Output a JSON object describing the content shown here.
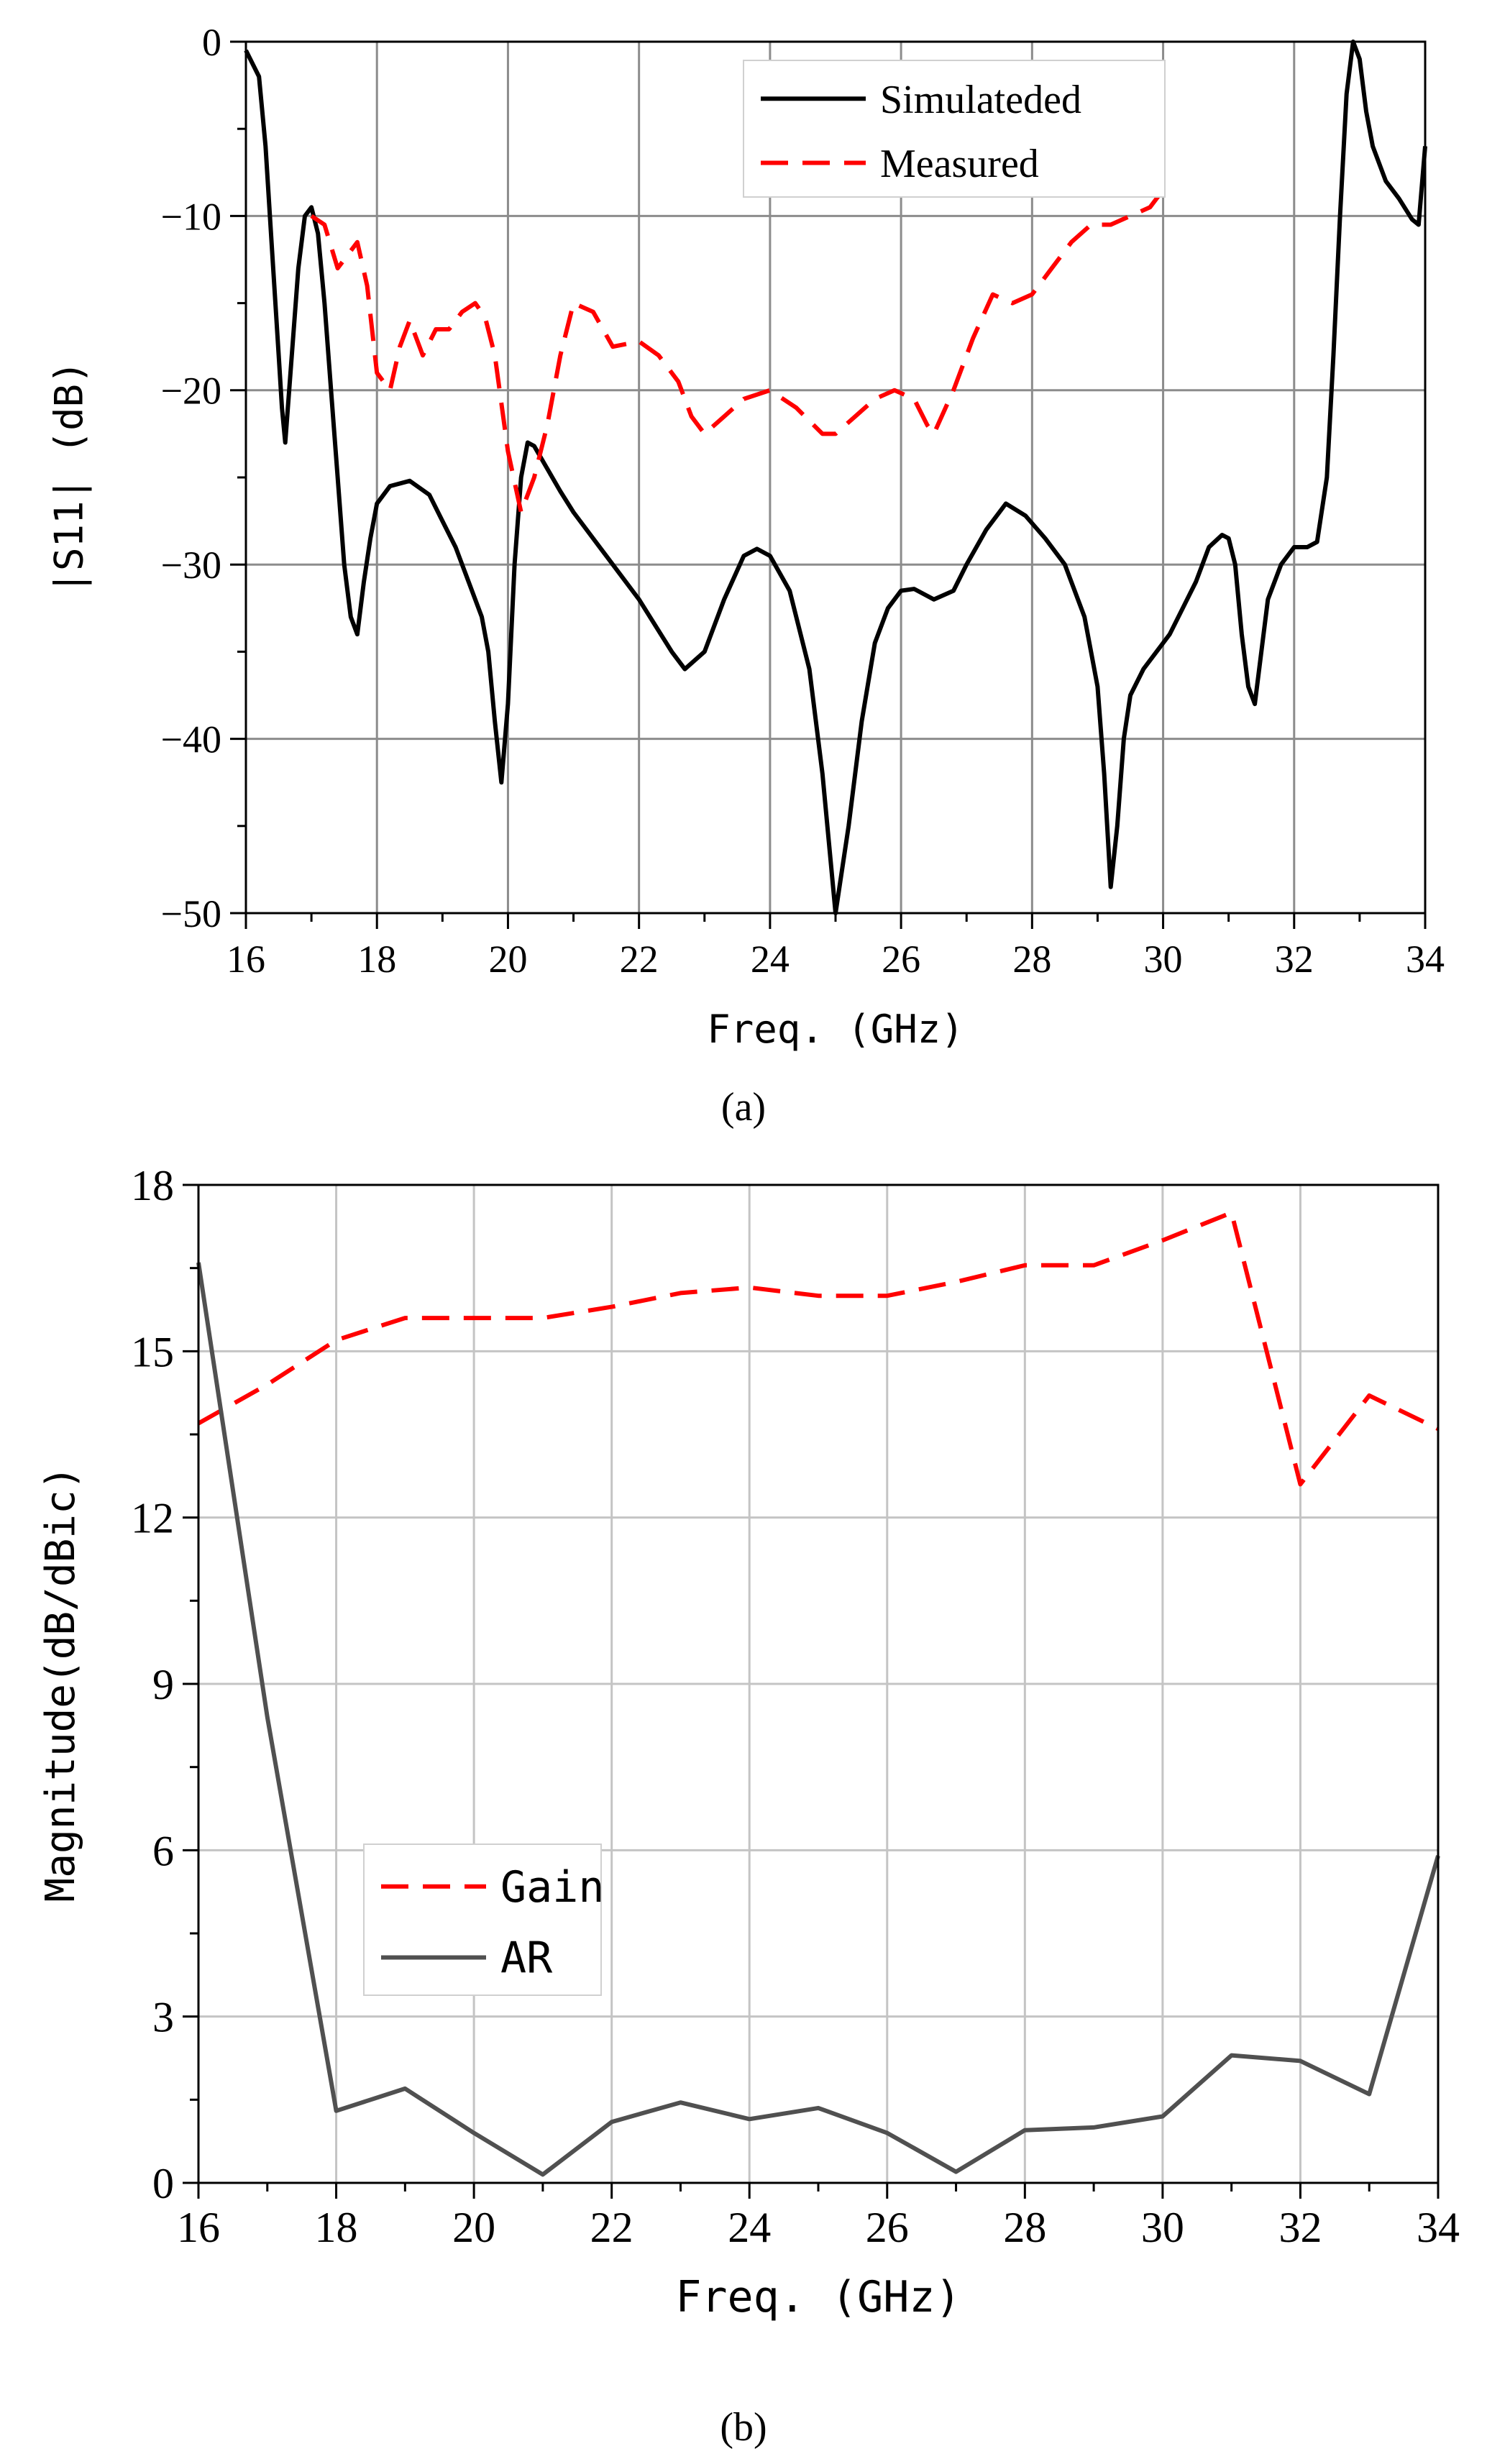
{
  "figure": {
    "panel_a_caption": "(a)",
    "panel_b_caption": "(b)"
  },
  "chart_data": [
    {
      "type": "line",
      "id": "panel-a",
      "title": "",
      "xlabel": "Freq. (GHz)",
      "ylabel": "|S11| (dB)",
      "xlim": [
        16,
        34
      ],
      "ylim": [
        -50,
        0
      ],
      "xticks": [
        16,
        18,
        20,
        22,
        24,
        26,
        28,
        30,
        32,
        34
      ],
      "yticks": [
        0,
        -10,
        -20,
        -30,
        -40,
        -50
      ],
      "ytick_labels": [
        "0",
        "−10",
        "−20",
        "−30",
        "−40",
        "−50"
      ],
      "grid": true,
      "legend_position": "top-right",
      "series": [
        {
          "name": "Simulateded",
          "color": "#000000",
          "style": "solid",
          "x": [
            16.0,
            16.2,
            16.3,
            16.4,
            16.5,
            16.55,
            16.6,
            16.7,
            16.8,
            16.9,
            17.0,
            17.1,
            17.2,
            17.3,
            17.4,
            17.5,
            17.6,
            17.7,
            17.8,
            17.9,
            18.0,
            18.2,
            18.5,
            18.8,
            19.0,
            19.2,
            19.4,
            19.6,
            19.7,
            19.8,
            19.9,
            20.0,
            20.1,
            20.2,
            20.3,
            20.4,
            20.6,
            20.8,
            21.0,
            21.5,
            22.0,
            22.5,
            22.7,
            23.0,
            23.3,
            23.6,
            23.8,
            24.0,
            24.3,
            24.6,
            24.8,
            24.9,
            25.0,
            25.2,
            25.4,
            25.6,
            25.8,
            26.0,
            26.2,
            26.5,
            26.8,
            27.0,
            27.3,
            27.6,
            27.9,
            28.2,
            28.5,
            28.8,
            29.0,
            29.1,
            29.2,
            29.3,
            29.4,
            29.5,
            29.7,
            29.9,
            30.1,
            30.3,
            30.5,
            30.7,
            30.9,
            31.0,
            31.1,
            31.2,
            31.3,
            31.4,
            31.5,
            31.6,
            31.8,
            32.0,
            32.2,
            32.35,
            32.5,
            32.6,
            32.7,
            32.8,
            32.9,
            33.0,
            33.1,
            33.2,
            33.4,
            33.6,
            33.8,
            33.9,
            34.0
          ],
          "y": [
            -0.5,
            -2,
            -6,
            -12,
            -18,
            -21,
            -23,
            -18,
            -13,
            -10,
            -9.5,
            -11,
            -15,
            -20,
            -25,
            -30,
            -33,
            -34,
            -31,
            -28.5,
            -26.5,
            -25.5,
            -25.2,
            -26,
            -27.5,
            -29,
            -31,
            -33,
            -35,
            -39,
            -42.5,
            -38,
            -30,
            -25,
            -23,
            -23.2,
            -24.5,
            -25.8,
            -27,
            -29.5,
            -32,
            -35,
            -36,
            -35,
            -32,
            -29.5,
            -29.1,
            -29.5,
            -31.5,
            -36,
            -42,
            -46,
            -50,
            -45,
            -39,
            -34.5,
            -32.5,
            -31.5,
            -31.4,
            -32,
            -31.5,
            -30,
            -28,
            -26.5,
            -27.2,
            -28.5,
            -30,
            -33,
            -37,
            -42,
            -48.5,
            -45,
            -40,
            -37.5,
            -36,
            -35,
            -34,
            -32.5,
            -31,
            -29,
            -28.3,
            -28.5,
            -30,
            -34,
            -37,
            -38,
            -35,
            -32,
            -30,
            -29,
            -29,
            -28.7,
            -25,
            -18,
            -10,
            -3,
            0,
            -1,
            -4,
            -6,
            -8,
            -9,
            -10.2,
            -10.5,
            -6
          ]
        },
        {
          "name": "Measured",
          "color": "#ff0000",
          "style": "dashed",
          "x": [
            17.0,
            17.2,
            17.4,
            17.5,
            17.7,
            17.85,
            18.0,
            18.2,
            18.35,
            18.5,
            18.7,
            18.9,
            19.1,
            19.3,
            19.5,
            19.65,
            19.8,
            20.0,
            20.2,
            20.4,
            20.6,
            20.8,
            21.0,
            21.3,
            21.6,
            22.0,
            22.3,
            22.6,
            22.8,
            23.0,
            23.3,
            23.6,
            24.0,
            24.4,
            24.8,
            25.0,
            25.3,
            25.6,
            25.9,
            26.2,
            26.4,
            26.5,
            26.8,
            27.1,
            27.4,
            27.7,
            28.0,
            28.3,
            28.6,
            28.9,
            29.2,
            29.5,
            29.8,
            30.0
          ],
          "y": [
            -10,
            -10.5,
            -13,
            -12.5,
            -11.5,
            -14,
            -19,
            -20,
            -17.5,
            -16,
            -18,
            -16.5,
            -16.5,
            -15.5,
            -15,
            -15.8,
            -18,
            -23.5,
            -27,
            -25,
            -22,
            -18,
            -15,
            -15.5,
            -17.5,
            -17.2,
            -18,
            -19.5,
            -21.5,
            -22.5,
            -21.5,
            -20.5,
            -20,
            -21,
            -22.5,
            -22.5,
            -21.5,
            -20.5,
            -20,
            -20.5,
            -22,
            -22.5,
            -20,
            -17,
            -14.5,
            -15,
            -14.5,
            -13,
            -11.5,
            -10.5,
            -10.5,
            -10,
            -9.5,
            -8.5
          ]
        }
      ]
    },
    {
      "type": "line",
      "id": "panel-b",
      "title": "",
      "xlabel": "Freq. (GHz)",
      "ylabel": "Magnitude(dB/dBic)",
      "xlim": [
        16,
        34
      ],
      "ylim": [
        0,
        18
      ],
      "xticks": [
        16,
        18,
        20,
        22,
        24,
        26,
        28,
        30,
        32,
        34
      ],
      "yticks": [
        0,
        3,
        6,
        9,
        12,
        15,
        18
      ],
      "grid": true,
      "legend_position": "center-left",
      "series": [
        {
          "name": "Gain",
          "color": "#ff0000",
          "style": "dashed",
          "x": [
            16,
            17,
            18,
            19,
            20,
            21,
            22,
            23,
            24,
            25,
            26,
            27,
            28,
            29,
            30,
            31,
            32,
            33,
            34
          ],
          "y": [
            13.7,
            14.4,
            15.2,
            15.6,
            15.6,
            15.6,
            15.8,
            16.05,
            16.15,
            16.0,
            16.0,
            16.25,
            16.55,
            16.55,
            17.0,
            17.5,
            12.6,
            14.2,
            13.6
          ]
        },
        {
          "name": "AR",
          "color": "#505050",
          "style": "solid",
          "x": [
            16,
            17,
            18,
            19,
            20,
            21,
            22,
            23,
            24,
            25,
            26,
            27,
            28,
            29,
            30,
            31,
            32,
            33,
            34
          ],
          "y": [
            16.6,
            8.4,
            1.3,
            1.7,
            0.9,
            0.15,
            1.1,
            1.45,
            1.15,
            1.35,
            0.9,
            0.2,
            0.95,
            1.0,
            1.2,
            2.3,
            2.2,
            1.6,
            5.9
          ]
        }
      ]
    }
  ]
}
